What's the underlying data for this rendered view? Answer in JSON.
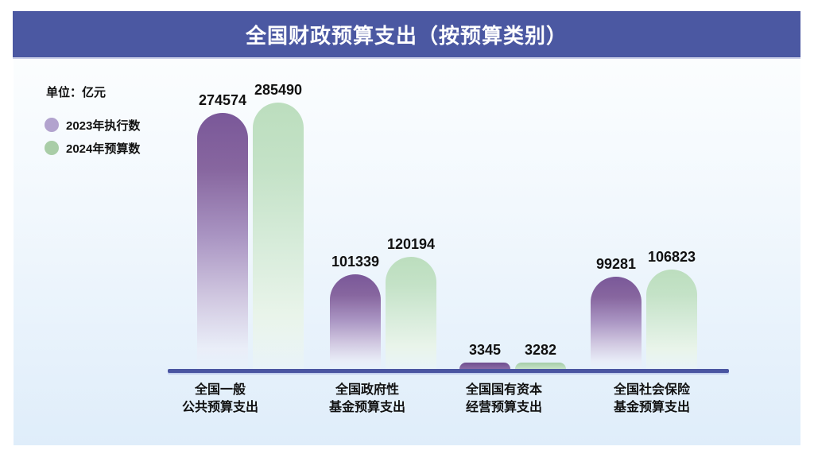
{
  "header": {
    "title": "全国财政预算支出（按预算类别）"
  },
  "legend": {
    "unit_label": "单位：亿元",
    "items": [
      {
        "label": "2023年执行数",
        "color": "#B2A3CE"
      },
      {
        "label": "2024年预算数",
        "color": "#A9CDA7"
      }
    ]
  },
  "chart_data": {
    "type": "bar",
    "title": "全国财政预算支出（按预算类别）",
    "unit": "亿元",
    "categories": [
      "全国一般\n公共预算支出",
      "全国政府性\n基金预算支出",
      "全国国有资本\n经营预算支出",
      "全国社会保险\n基金预算支出"
    ],
    "series": [
      {
        "name": "2023年执行数",
        "color": "#7A5899",
        "values": [
          274574,
          101339,
          3345,
          99281
        ]
      },
      {
        "name": "2024年预算数",
        "color": "#BCDEBE",
        "values": [
          285490,
          120194,
          3282,
          106823
        ]
      }
    ],
    "ylim": [
      0,
      285490
    ],
    "value_labels": true,
    "grid": false,
    "legend_position": "top-left"
  },
  "colors": {
    "header_band": "#4B58A2",
    "header_band_border": "#C9CDE7",
    "panel_gradient_top": "#FEFFFF",
    "panel_gradient_bottom": "#DFEDFA",
    "axis_line": "#4A55A1",
    "bar_2023_top": "#7A5899",
    "bar_2024_top": "#BCDEBE",
    "legend_2023": "#B2A3CE",
    "legend_2024": "#A9CDA7",
    "title_text": "#FFFFFF",
    "text": "#111111"
  }
}
